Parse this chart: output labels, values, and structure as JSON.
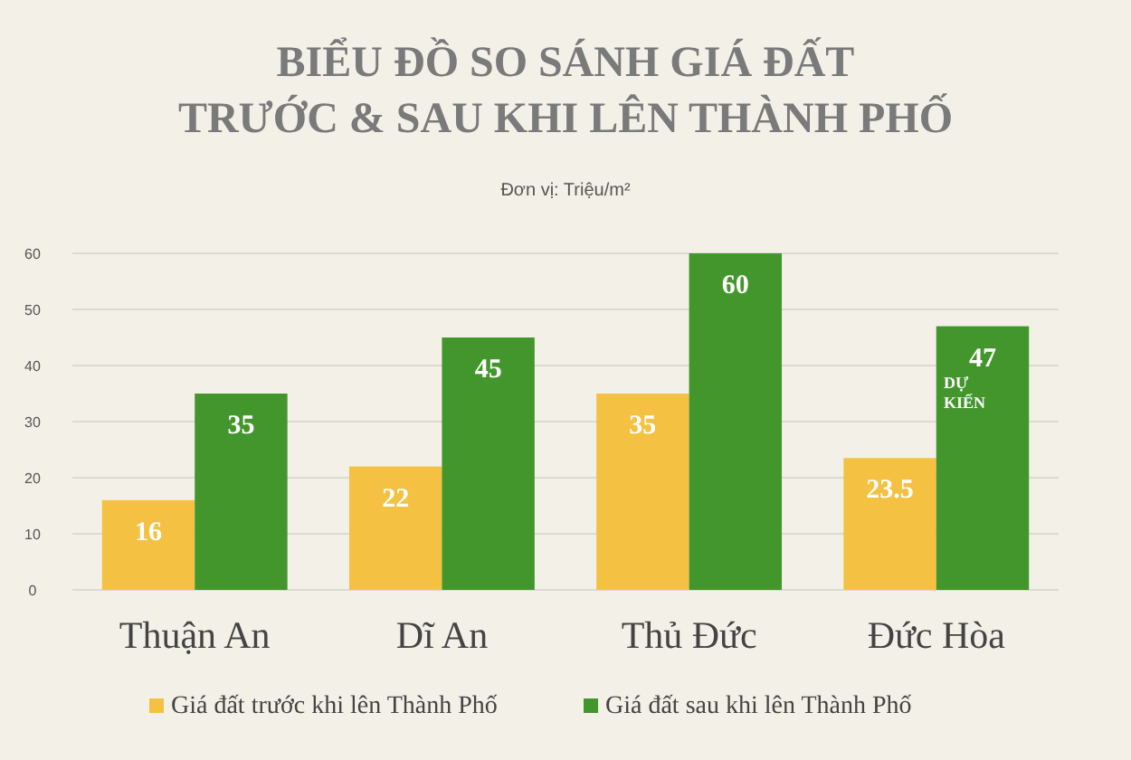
{
  "chart_data": {
    "type": "bar",
    "title": "BIỂU ĐỒ SO SÁNH GIÁ ĐẤT\nTRƯỚC & SAU KHI LÊN THÀNH PHỐ",
    "subtitle": "Đơn vị: Triệu/m²",
    "categories": [
      "Thuận An",
      "Dĩ An",
      "Thủ Đức",
      "Đức Hòa"
    ],
    "series": [
      {
        "name": "Giá đất trước khi lên Thành Phố",
        "color": "#f4c142",
        "values": [
          16,
          22,
          35,
          23.5
        ]
      },
      {
        "name": "Giá đất sau khi lên Thành Phố",
        "color": "#43962c",
        "values": [
          35,
          45,
          60,
          47
        ]
      }
    ],
    "ylim": [
      0,
      60
    ],
    "yticks": [
      0,
      10,
      20,
      30,
      40,
      50,
      60
    ],
    "grid": true,
    "legend": "bottom",
    "data_labels": true,
    "annotations": [
      {
        "text": "DỰ KIẾN",
        "x": "Đức Hòa",
        "y": 36
      }
    ]
  }
}
